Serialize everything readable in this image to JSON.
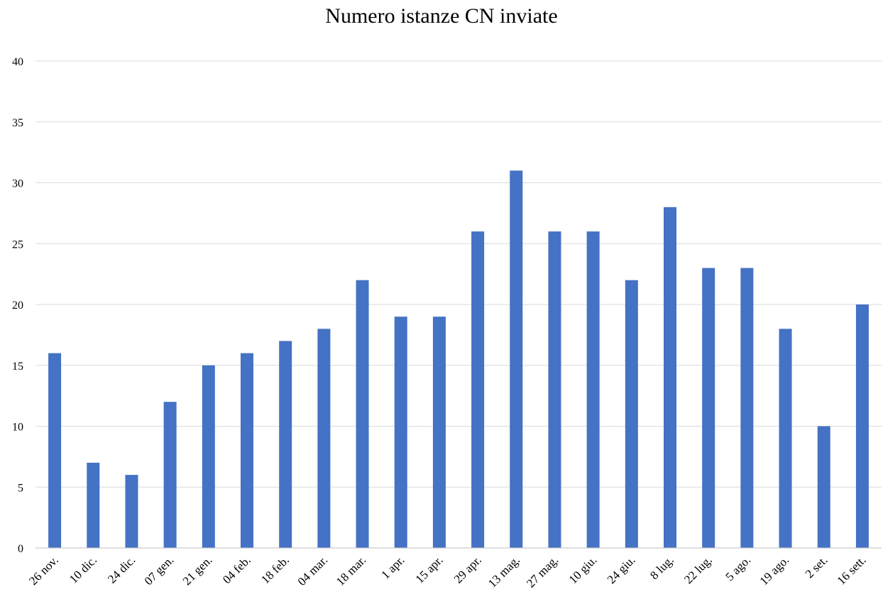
{
  "chart_data": {
    "type": "bar",
    "title": "Numero istanze CN inviate",
    "xlabel": "",
    "ylabel": "",
    "ylim": [
      0,
      40
    ],
    "yticks": [
      0,
      5,
      10,
      15,
      20,
      25,
      30,
      35,
      40
    ],
    "grid": true,
    "legend": "none",
    "categories": [
      "26 nov.",
      "10 dic.",
      "24 dic.",
      "07 gen.",
      "21 gen.",
      "04 feb.",
      "18 feb.",
      "04 mar.",
      "18 mar.",
      "1 apr.",
      "15 apr.",
      "29 apr.",
      "13 mag.",
      "27 mag.",
      "10 giu.",
      "24 giu.",
      "8 lug.",
      "22 lug.",
      "5 ago.",
      "19 ago.",
      "2 set.",
      "16 sett."
    ],
    "values": [
      16,
      7,
      6,
      12,
      15,
      16,
      17,
      18,
      22,
      19,
      19,
      26,
      31,
      26,
      26,
      22,
      28,
      23,
      23,
      18,
      10,
      20
    ],
    "colors": {
      "bar": "#4472C4",
      "grid": "#D9D9D9",
      "axis": "#BFBFBF",
      "text": "#000000"
    }
  }
}
